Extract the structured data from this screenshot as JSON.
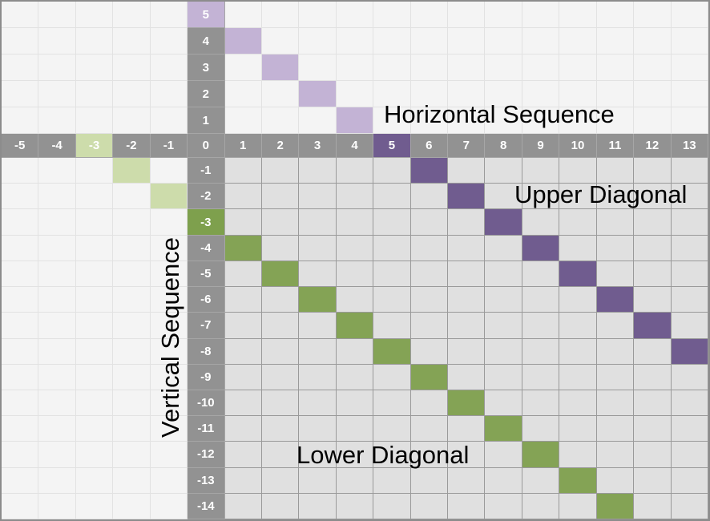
{
  "title_labels": {
    "horizontal_sequence": "Horizontal Sequence",
    "vertical_sequence": "Vertical Sequence",
    "upper_diagonal": "Upper Diagonal",
    "lower_diagonal": "Lower Diagonal"
  },
  "grid": {
    "col_headers": [
      "-5",
      "-4",
      "-3",
      "-2",
      "-1",
      "0",
      "1",
      "2",
      "3",
      "4",
      "5",
      "6",
      "7",
      "8",
      "9",
      "10",
      "11",
      "12",
      "13"
    ],
    "row_headers": [
      "5",
      "4",
      "3",
      "2",
      "1",
      "0",
      "-1",
      "-2",
      "-3",
      "-4",
      "-5",
      "-6",
      "-7",
      "-8",
      "-9",
      "-10",
      "-11",
      "-12",
      "-13",
      "-14"
    ],
    "col_header_highlights": [
      {
        "label": "5",
        "style": "dark_purple"
      },
      {
        "label": "-3",
        "style": "light_green"
      }
    ],
    "row_header_highlights": [
      {
        "label": "5",
        "style": "light_purple"
      },
      {
        "label": "-3",
        "style": "green_header"
      }
    ],
    "upper_diagonal_cells": {
      "light": [
        [
          1,
          4
        ],
        [
          2,
          3
        ],
        [
          3,
          2
        ],
        [
          4,
          1
        ]
      ],
      "dark": [
        [
          6,
          -1
        ],
        [
          7,
          -2
        ],
        [
          8,
          -3
        ],
        [
          9,
          -4
        ],
        [
          10,
          -5
        ],
        [
          11,
          -6
        ],
        [
          12,
          -7
        ],
        [
          13,
          -8
        ]
      ]
    },
    "lower_diagonal_cells": {
      "light": [
        [
          -2,
          -1
        ],
        [
          -1,
          -2
        ]
      ],
      "dark": [
        [
          1,
          -4
        ],
        [
          2,
          -5
        ],
        [
          3,
          -6
        ],
        [
          4,
          -7
        ],
        [
          5,
          -8
        ],
        [
          6,
          -9
        ],
        [
          7,
          -10
        ],
        [
          8,
          -11
        ],
        [
          9,
          -12
        ],
        [
          10,
          -13
        ],
        [
          11,
          -14
        ]
      ]
    }
  },
  "colors": {
    "header_gray": "#929292",
    "header_border": "#a6a6a6",
    "header_text": "#ffffff",
    "light_cell": "#f4f4f4",
    "light_grid": "#e2e2e2",
    "shaded_cell": "#e0e0e0",
    "shaded_grid": "#9a9a9a",
    "light_purple": "#c3b3d5",
    "dark_purple": "#705c8f",
    "light_green": "#cddcab",
    "green": "#84a355",
    "green_header": "#7ea04d",
    "label_text": "#000000"
  }
}
